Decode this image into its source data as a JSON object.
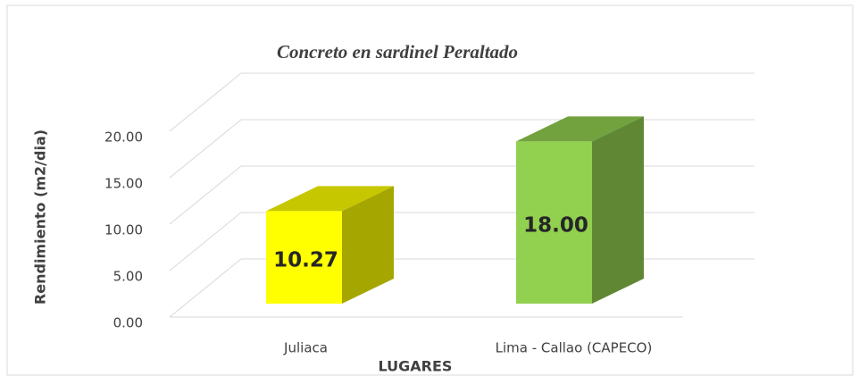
{
  "chart_data": {
    "type": "bar3d",
    "title": "Concreto en sardinel Peraltado",
    "y_axis_label": "Rendimiento  (m2/dia)",
    "x_axis_label": "LUGARES",
    "categories": [
      "Juliaca",
      "Lima - Callao (CAPECO)"
    ],
    "values": [
      10.27,
      18.0
    ],
    "value_labels": [
      "10.27",
      "18.00"
    ],
    "colors": [
      "#ffff00",
      "#92d050"
    ],
    "ylim": [
      0,
      20
    ],
    "yticks": [
      {
        "value": 0,
        "label": "0.00"
      },
      {
        "value": 5,
        "label": "5.00"
      },
      {
        "value": 10,
        "label": "10.00"
      },
      {
        "value": 15,
        "label": "15.00"
      },
      {
        "value": 20,
        "label": "20.00"
      }
    ],
    "grid": true
  }
}
